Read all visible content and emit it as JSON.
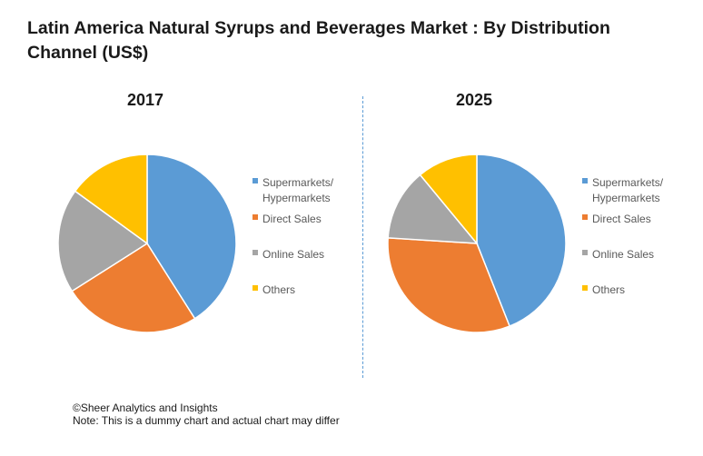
{
  "title": "Latin America Natural Syrups and Beverages Market : By Distribution Channel (US$)",
  "footer": {
    "copyright": "©Sheer Analytics and Insights",
    "note": "Note: This is a dummy chart and actual chart may differ"
  },
  "chart_data": [
    {
      "type": "pie",
      "title": "2017",
      "categories": [
        "Supermarkets/ Hypermarkets",
        "Direct Sales",
        "Online Sales",
        "Others"
      ],
      "values": [
        41,
        25,
        19,
        15
      ],
      "colors": [
        "#5b9bd5",
        "#ed7d31",
        "#a5a5a5",
        "#ffc000"
      ],
      "legend": "right"
    },
    {
      "type": "pie",
      "title": "2025",
      "categories": [
        "Supermarkets/ Hypermarkets",
        "Direct Sales",
        "Online Sales",
        "Others"
      ],
      "values": [
        44,
        32,
        13,
        11
      ],
      "colors": [
        "#5b9bd5",
        "#ed7d31",
        "#a5a5a5",
        "#ffc000"
      ],
      "legend": "right"
    }
  ]
}
